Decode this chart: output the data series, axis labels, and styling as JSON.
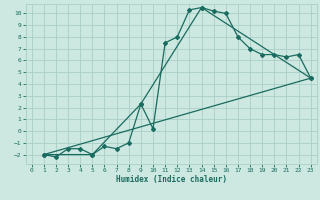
{
  "xlabel": "Humidex (Indice chaleur)",
  "xlim": [
    -0.5,
    23.5
  ],
  "ylim": [
    -2.8,
    10.8
  ],
  "xticks": [
    0,
    1,
    2,
    3,
    4,
    5,
    6,
    7,
    8,
    9,
    10,
    11,
    12,
    13,
    14,
    15,
    16,
    17,
    18,
    19,
    20,
    21,
    22,
    23
  ],
  "yticks": [
    -2,
    -1,
    0,
    1,
    2,
    3,
    4,
    5,
    6,
    7,
    8,
    9,
    10
  ],
  "bg_color": "#cce8e0",
  "grid_color": "#aacfc8",
  "line_color": "#1a6b60",
  "lines": [
    {
      "x": [
        1,
        2,
        3,
        4,
        5,
        6,
        7,
        8,
        9,
        10,
        11,
        12,
        13,
        14,
        15,
        16,
        17,
        18,
        19,
        20,
        21,
        22,
        23
      ],
      "y": [
        -2,
        -2.2,
        -1.5,
        -1.5,
        -2,
        -1.3,
        -1.5,
        -1.0,
        2.3,
        0.2,
        7.5,
        8.0,
        10.3,
        10.5,
        10.2,
        10.0,
        8.0,
        7.0,
        6.5,
        6.5,
        6.3,
        6.5,
        4.5
      ]
    },
    {
      "x": [
        1,
        5,
        9,
        14,
        23
      ],
      "y": [
        -2,
        -2,
        2.3,
        10.5,
        4.5
      ]
    },
    {
      "x": [
        1,
        23
      ],
      "y": [
        -2,
        4.5
      ]
    }
  ]
}
